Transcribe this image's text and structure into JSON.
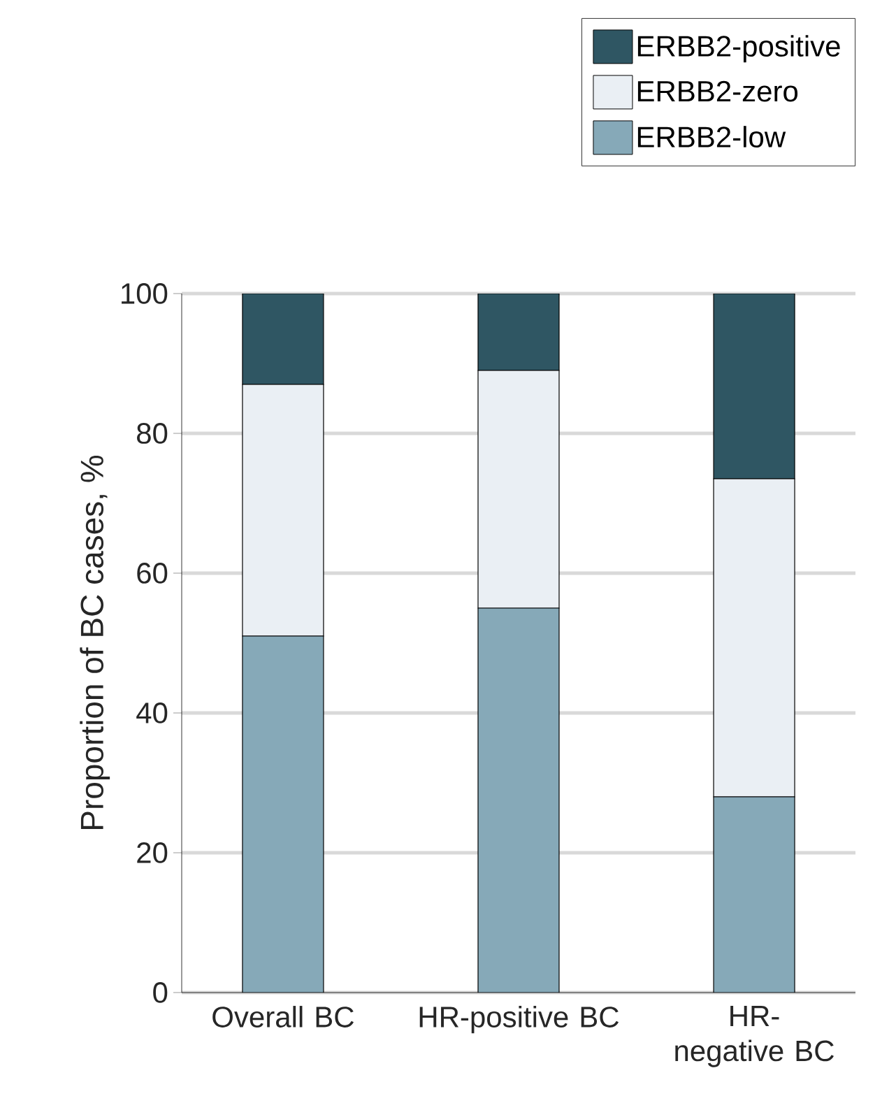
{
  "chart_data": {
    "type": "bar",
    "stacked": true,
    "ylabel": "Proportion of BC cases, %",
    "categories": [
      "Overall BC",
      "HR-positive BC",
      "HR-negative BC"
    ],
    "series": [
      {
        "name": "ERBB2-low",
        "color": "#86a9b8",
        "values": [
          51,
          55,
          28
        ]
      },
      {
        "name": "ERBB2-zero",
        "color": "#eaeff4",
        "values": [
          36,
          34,
          45.5
        ]
      },
      {
        "name": "ERBB2-positive",
        "color": "#2f5663",
        "values": [
          13,
          11,
          26.5
        ]
      }
    ],
    "ylim": [
      0,
      100
    ],
    "yticks": [
      0,
      20,
      40,
      60,
      80,
      100
    ],
    "grid": "y",
    "legend": "top right"
  }
}
